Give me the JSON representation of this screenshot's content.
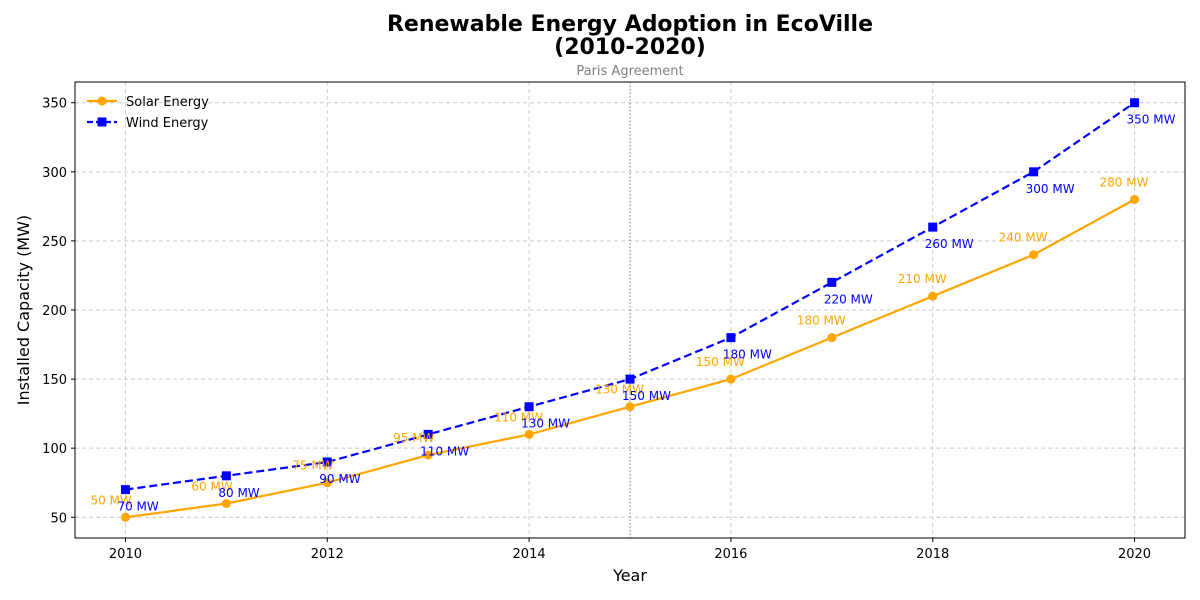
{
  "chart_data": {
    "type": "line",
    "title_line1": "Renewable Energy Adoption in EcoVille",
    "title_line2": "(2010-2020)",
    "xlabel": "Year",
    "ylabel": "Installed Capacity (MW)",
    "x": [
      2010,
      2011,
      2012,
      2013,
      2014,
      2015,
      2016,
      2017,
      2018,
      2019,
      2020
    ],
    "xlim": [
      2009.5,
      2020.5
    ],
    "ylim": [
      35,
      365
    ],
    "xticks": [
      2010,
      2012,
      2014,
      2016,
      2018,
      2020
    ],
    "yticks": [
      50,
      100,
      150,
      200,
      250,
      300,
      350
    ],
    "grid": true,
    "legend_position": "top-left",
    "series": [
      {
        "name": "Solar Energy",
        "values": [
          50,
          60,
          75,
          95,
          110,
          130,
          150,
          180,
          210,
          240,
          280
        ],
        "labels": [
          "50 MW",
          "60 MW",
          "75 MW",
          "95 MW",
          "110 MW",
          "130 MW",
          "150 MW",
          "180 MW",
          "210 MW",
          "240 MW",
          "280 MW"
        ],
        "color": "#FFA500",
        "line_style": "solid",
        "marker": "circle",
        "label_placement": "upper-left"
      },
      {
        "name": "Wind Energy",
        "values": [
          70,
          80,
          90,
          110,
          130,
          150,
          180,
          220,
          260,
          300,
          350
        ],
        "labels": [
          "70 MW",
          "80 MW",
          "90 MW",
          "110 MW",
          "130 MW",
          "150 MW",
          "180 MW",
          "220 MW",
          "260 MW",
          "300 MW",
          "350 MW"
        ],
        "color": "#0000FF",
        "line_style": "dashed",
        "marker": "square",
        "label_placement": "below"
      }
    ],
    "annotations": [
      {
        "x": 2015,
        "text": "Paris Agreement",
        "color": "#808080",
        "line_style": "dotted"
      }
    ]
  }
}
